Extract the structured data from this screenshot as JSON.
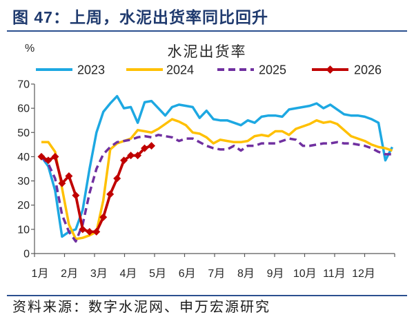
{
  "figure": {
    "title": "图 47：上周，水泥出货率同比回升",
    "source": "资料来源：数字水泥网、申万宏源研究"
  },
  "chart_data": {
    "type": "line",
    "title": "水泥出货率",
    "ylabel": "%",
    "ylim": [
      0,
      70
    ],
    "yticks": [
      0,
      10,
      20,
      30,
      40,
      50,
      60,
      70
    ],
    "xticks": [
      "1月",
      "2月",
      "3月",
      "4月",
      "5月",
      "6月",
      "7月",
      "8月",
      "9月",
      "10月",
      "11月",
      "12月"
    ],
    "legend_position": "top",
    "grid": false,
    "series": [
      {
        "name": "2023",
        "color": "#1DA8E2",
        "style": "solid",
        "values": [
          40,
          36,
          26,
          7,
          9,
          10,
          18,
          35,
          50,
          58.5,
          62,
          65,
          60,
          60.5,
          54,
          62.5,
          63,
          60,
          57,
          60.5,
          61.5,
          61,
          60.5,
          56,
          59,
          55.5,
          55,
          55,
          54,
          53,
          55,
          54,
          56.5,
          57,
          57,
          56.5,
          59.5,
          60,
          60.5,
          61,
          62,
          60,
          61.5,
          59.5,
          57.5,
          57,
          57,
          56.5,
          55.5,
          54,
          38.5,
          44
        ]
      },
      {
        "name": "2024",
        "color": "#FFC000",
        "style": "solid",
        "values": [
          46,
          46,
          42,
          27,
          12,
          6,
          6.5,
          7.5,
          9,
          22,
          43,
          45.5,
          46.5,
          47.5,
          51,
          50.5,
          50,
          51.5,
          53.5,
          55.5,
          54.5,
          53,
          50,
          49.5,
          48,
          45.5,
          47,
          46.5,
          46,
          46,
          46.5,
          48.5,
          49,
          48.5,
          50.5,
          50.5,
          49,
          51.5,
          52.5,
          53.5,
          55,
          54,
          54.5,
          53.5,
          51,
          48.5,
          47.5,
          46.5,
          45,
          44,
          43.5,
          42.5
        ]
      },
      {
        "name": "2025",
        "color": "#7030A0",
        "style": "dashed",
        "values": [
          40,
          37,
          31,
          16,
          9,
          5,
          12,
          25,
          35,
          41,
          44,
          46,
          46.5,
          47,
          48,
          48.5,
          48,
          49,
          48.5,
          48,
          46.5,
          47.5,
          47.5,
          46,
          44.5,
          43.5,
          43,
          43,
          44.5,
          42.5,
          44.5,
          44.5,
          45.5,
          45.5,
          45.5,
          46.5,
          47.5,
          47,
          44.5,
          44.5,
          45,
          45.5,
          45.5,
          46,
          45.5,
          45.5,
          45,
          44.5,
          43.5,
          42,
          41,
          41
        ]
      },
      {
        "name": "2026",
        "color": "#C00000",
        "style": "solid",
        "marker": "diamond",
        "values": [
          40,
          38.5,
          40,
          29,
          32,
          24,
          10,
          9,
          9,
          15,
          24.5,
          31,
          38.5,
          40.5,
          40.5,
          43.5,
          44.5
        ]
      }
    ]
  }
}
